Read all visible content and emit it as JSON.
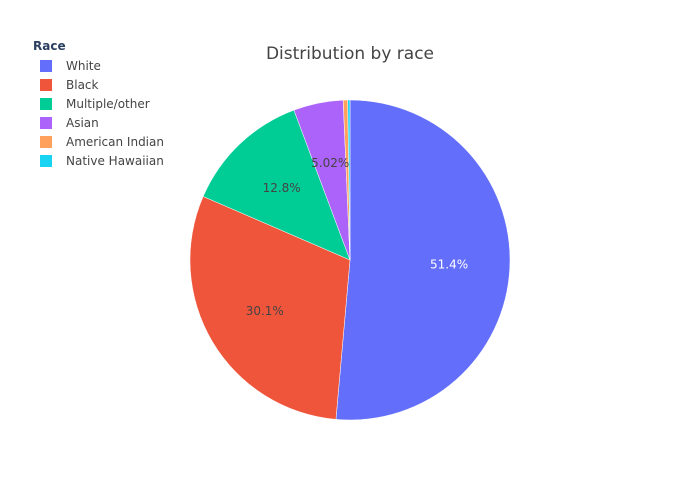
{
  "chart_data": {
    "type": "pie",
    "title": "Distribution by race",
    "legend_title": "Race",
    "legend_position": "top-left",
    "categories": [
      "White",
      "Black",
      "Multiple/other",
      "Asian",
      "American Indian",
      "Native Hawaiian"
    ],
    "values": [
      51.4,
      30.1,
      12.8,
      5.02,
      0.45,
      0.23
    ],
    "data_labels": [
      "51.4%",
      "30.1%",
      "12.8%",
      "5.02%",
      "",
      ""
    ],
    "colors": [
      "#636efa",
      "#ef553b",
      "#00cc96",
      "#ab63fa",
      "#ffa15a",
      "#19d3f3"
    ],
    "label_colors": [
      "#ffffff",
      "#444444",
      "#444444",
      "#444444",
      "#444444",
      "#444444"
    ]
  }
}
